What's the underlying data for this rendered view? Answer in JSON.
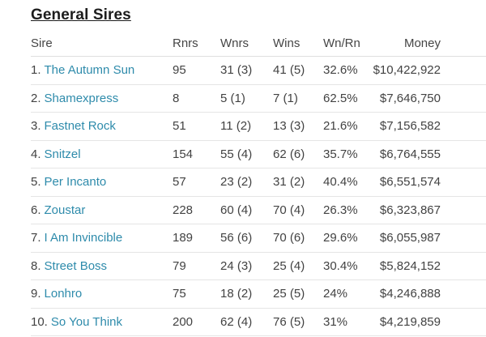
{
  "page": {
    "title": "General Sires"
  },
  "colors": {
    "link": "#2e8bab",
    "text": "#424242",
    "title": "#1d1d1d",
    "border": "#e5e5e5",
    "background": "#ffffff"
  },
  "table": {
    "columns": [
      {
        "key": "sire",
        "label": "Sire"
      },
      {
        "key": "rnrs",
        "label": "Rnrs"
      },
      {
        "key": "wnrs",
        "label": "Wnrs"
      },
      {
        "key": "wins",
        "label": "Wins"
      },
      {
        "key": "wnrn",
        "label": "Wn/Rn"
      },
      {
        "key": "money",
        "label": "Money"
      }
    ],
    "rows": [
      {
        "rank": "1.",
        "sire": "The Autumn Sun",
        "rnrs": "95",
        "wnrs": "31 (3)",
        "wins": "41 (5)",
        "wnrn": "32.6%",
        "money": "$10,422,922"
      },
      {
        "rank": "2.",
        "sire": "Shamexpress",
        "rnrs": "8",
        "wnrs": "5 (1)",
        "wins": "7 (1)",
        "wnrn": "62.5%",
        "money": "$7,646,750"
      },
      {
        "rank": "3.",
        "sire": "Fastnet Rock",
        "rnrs": "51",
        "wnrs": "11 (2)",
        "wins": "13 (3)",
        "wnrn": "21.6%",
        "money": "$7,156,582"
      },
      {
        "rank": "4.",
        "sire": "Snitzel",
        "rnrs": "154",
        "wnrs": "55 (4)",
        "wins": "62 (6)",
        "wnrn": "35.7%",
        "money": "$6,764,555"
      },
      {
        "rank": "5.",
        "sire": "Per Incanto",
        "rnrs": "57",
        "wnrs": "23 (2)",
        "wins": "31 (2)",
        "wnrn": "40.4%",
        "money": "$6,551,574"
      },
      {
        "rank": "6.",
        "sire": "Zoustar",
        "rnrs": "228",
        "wnrs": "60 (4)",
        "wins": "70 (4)",
        "wnrn": "26.3%",
        "money": "$6,323,867"
      },
      {
        "rank": "7.",
        "sire": "I Am Invincible",
        "rnrs": "189",
        "wnrs": "56 (6)",
        "wins": "70 (6)",
        "wnrn": "29.6%",
        "money": "$6,055,987"
      },
      {
        "rank": "8.",
        "sire": "Street Boss",
        "rnrs": "79",
        "wnrs": "24 (3)",
        "wins": "25 (4)",
        "wnrn": "30.4%",
        "money": "$5,824,152"
      },
      {
        "rank": "9.",
        "sire": "Lonhro",
        "rnrs": "75",
        "wnrs": "18 (2)",
        "wins": "25 (5)",
        "wnrn": "24%",
        "money": "$4,246,888"
      },
      {
        "rank": "10.",
        "sire": "So You Think",
        "rnrs": "200",
        "wnrs": "62 (4)",
        "wins": "76 (5)",
        "wnrn": "31%",
        "money": "$4,219,859"
      }
    ]
  }
}
